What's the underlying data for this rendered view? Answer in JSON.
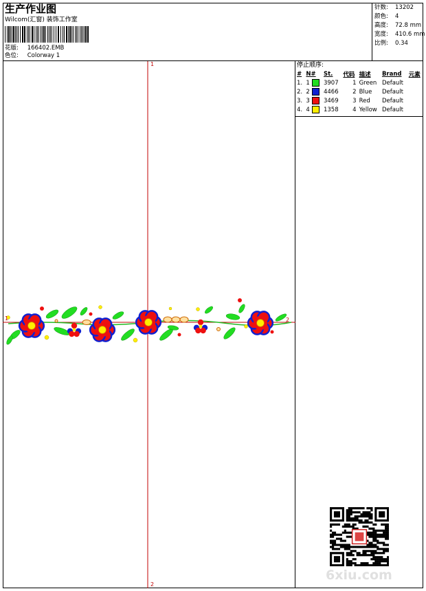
{
  "header": {
    "title": "生产作业图",
    "company": "Wilcom(汇窗) 装饰工作室",
    "design_label": "花版:",
    "design_value": "166402.EMB",
    "colorway_label": "色位:",
    "colorway_value": "Colorway 1"
  },
  "stats": [
    {
      "label": "针数:",
      "value": "13202"
    },
    {
      "label": "颜色:",
      "value": "4"
    },
    {
      "label": "高度:",
      "value": "72.8 mm"
    },
    {
      "label": "宽度:",
      "value": "410.6 mm"
    },
    {
      "label": "比例:",
      "value": "0.34"
    }
  ],
  "sequence": {
    "title": "停止顺序:",
    "columns": [
      "#",
      "N#",
      "St.",
      "代码",
      "描述",
      "Brand",
      "元素"
    ],
    "rows": [
      {
        "num": "1.",
        "n": "1",
        "color": "#22dd22",
        "st": "3907",
        "code": "1",
        "desc": "Green",
        "brand": "Default"
      },
      {
        "num": "2.",
        "n": "2",
        "color": "#1020d0",
        "st": "4466",
        "code": "2",
        "desc": "Blue",
        "brand": "Default"
      },
      {
        "num": "3.",
        "n": "3",
        "color": "#ee1010",
        "st": "3469",
        "code": "3",
        "desc": "Red",
        "brand": "Default"
      },
      {
        "num": "4.",
        "n": "4",
        "color": "#ffee00",
        "st": "1358",
        "code": "4",
        "desc": "Yellow",
        "brand": "Default"
      }
    ]
  },
  "axes": {
    "top_label": "1",
    "bottom_label": "2",
    "left_label": "1",
    "right_label": "2"
  },
  "watermark": "6xiu.com"
}
